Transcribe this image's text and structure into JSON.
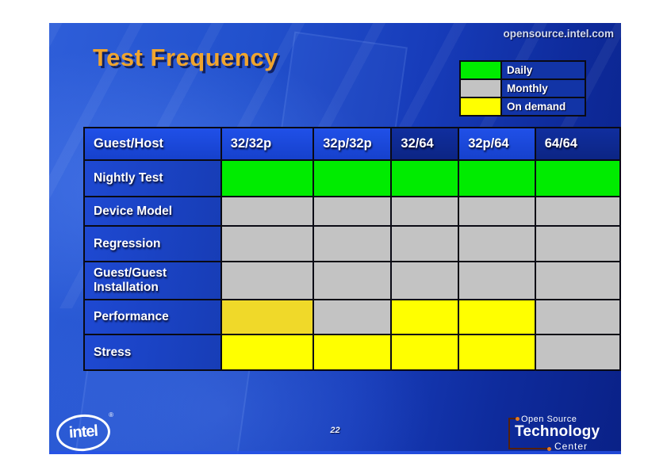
{
  "page": {
    "site_url": "opensource.intel.com",
    "title": "Test Frequency",
    "page_number": "22"
  },
  "colors": {
    "daily": "#00ec00",
    "monthly": "#c3c3c3",
    "ondemand": "#ffff00",
    "ondemand_dark": "#f0d929"
  },
  "legend": {
    "items": [
      {
        "key": "daily",
        "label": "Daily"
      },
      {
        "key": "monthly",
        "label": "Monthly"
      },
      {
        "key": "ondemand",
        "label": "On demand"
      }
    ]
  },
  "table": {
    "columns": [
      "Guest/Host",
      "32/32p",
      "32p/32p",
      "32/64",
      "32p/64",
      "64/64"
    ],
    "header_fills": [
      "bright",
      "bright",
      "bright",
      "dark",
      "bright",
      "dark"
    ],
    "rows": [
      {
        "label": "Nightly Test",
        "cells": [
          "daily",
          "daily",
          "daily",
          "daily",
          "daily"
        ]
      },
      {
        "label": "Device Model",
        "cells": [
          "monthly",
          "monthly",
          "monthly",
          "monthly",
          "monthly"
        ]
      },
      {
        "label": "Regression",
        "cells": [
          "monthly",
          "monthly",
          "monthly",
          "monthly",
          "monthly"
        ]
      },
      {
        "label": "Guest/Guest Installation",
        "cells": [
          "monthly",
          "monthly",
          "monthly",
          "monthly",
          "monthly"
        ]
      },
      {
        "label": "Performance",
        "cells": [
          "ondemand_dark",
          "monthly",
          "ondemand",
          "ondemand",
          "monthly"
        ]
      },
      {
        "label": "Stress",
        "cells": [
          "ondemand",
          "ondemand",
          "ondemand",
          "ondemand",
          "monthly"
        ]
      }
    ]
  },
  "footer": {
    "intel": {
      "word": "intel",
      "reg": "®"
    },
    "ostc": {
      "line1": "Open Source",
      "line2": "Technology",
      "line3": "Center"
    }
  }
}
